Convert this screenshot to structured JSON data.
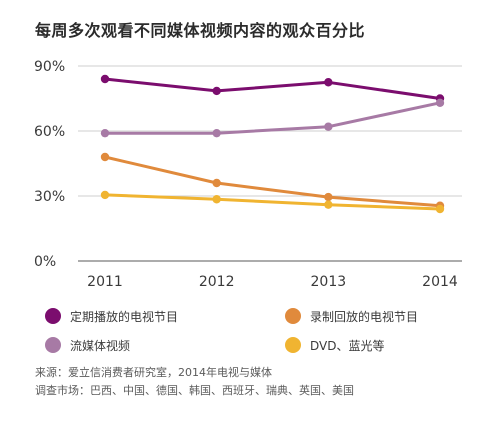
{
  "chart_data": {
    "type": "line",
    "title": "每周多次观看不同媒体视频内容的观众百分比",
    "categories": [
      "2011",
      "2012",
      "2013",
      "2014"
    ],
    "y_ticks": [
      "0%",
      "30%",
      "60%",
      "90%"
    ],
    "ylim": [
      0,
      90
    ],
    "grid": "horizontal",
    "legend_position": "bottom",
    "series": [
      {
        "name": "定期播放的电视节目",
        "color": "#7b0d6e",
        "values": [
          84,
          78.5,
          82.5,
          75
        ]
      },
      {
        "name": "录制回放的电视节目",
        "color": "#e08a3c",
        "values": [
          48,
          36,
          29.5,
          25.5
        ]
      },
      {
        "name": "流媒体视频",
        "color": "#a77aa5",
        "values": [
          59,
          59,
          62,
          73
        ]
      },
      {
        "name": "DVD、蓝光等",
        "color": "#f0b431",
        "values": [
          30.5,
          28.5,
          26,
          24
        ]
      }
    ]
  },
  "footnotes": {
    "source": "来源：爱立信消费者研究室，2014年电视与媒体",
    "markets": "调查市场：巴西、中国、德国、韩国、西班牙、瑞典、英国、美国"
  }
}
